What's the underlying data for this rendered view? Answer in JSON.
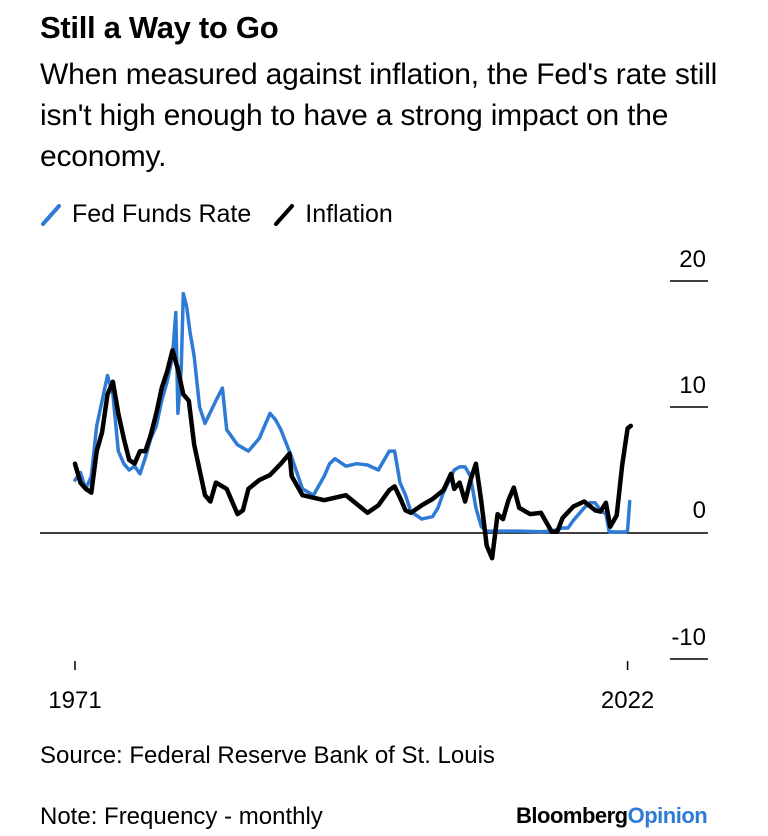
{
  "title": "Still a Way to Go",
  "subtitle": "When measured against inflation, the Fed's rate still isn't high enough to have a strong impact on the economy.",
  "legend": [
    {
      "label": "Fed Funds Rate",
      "color": "#2e7bd6"
    },
    {
      "label": "Inflation",
      "color": "#000000"
    }
  ],
  "source": "Source: Federal Reserve Bank of St. Louis",
  "note": "Note: Frequency - monthly",
  "brand": {
    "part1": "Bloomberg",
    "part2": "Opinion",
    "accent_color": "#2e7bd6"
  },
  "chart_data": {
    "type": "line",
    "title": "Still a Way to Go",
    "xlabel": "",
    "ylabel": "",
    "xlim": [
      1971,
      2022.5
    ],
    "ylim": [
      -10,
      20
    ],
    "yticks": [
      20,
      10,
      0,
      -10
    ],
    "yticklabels": [
      "20",
      "10",
      "0",
      "-10"
    ],
    "xticks": [
      1971,
      2022
    ],
    "xticklabels": [
      "1971",
      "2022"
    ],
    "zero_line": true,
    "legend_position": "top-left",
    "series": [
      {
        "name": "Fed Funds Rate",
        "color": "#2e7bd6",
        "x": [
          1971,
          1971.5,
          1972,
          1972.5,
          1973,
          1973.5,
          1974,
          1974.5,
          1975,
          1975.5,
          1976,
          1976.5,
          1977,
          1977.5,
          1978,
          1978.5,
          1979,
          1979.5,
          1980,
          1980.3,
          1980.5,
          1980.8,
          1981,
          1981.3,
          1981.6,
          1982,
          1982.5,
          1983,
          1984,
          1984.6,
          1985,
          1986,
          1987,
          1988,
          1989,
          1989.5,
          1990,
          1991,
          1992,
          1993,
          1994,
          1994.5,
          1995,
          1996,
          1997,
          1998,
          1999,
          2000,
          2000.5,
          2001,
          2001.5,
          2002,
          2003,
          2004,
          2004.5,
          2005,
          2006,
          2006.5,
          2007,
          2007.5,
          2008,
          2008.5,
          2009,
          2010,
          2012,
          2014,
          2015,
          2016,
          2016.5,
          2017,
          2018,
          2018.5,
          2019,
          2019.5,
          2020,
          2020.3,
          2021,
          2021.8,
          2022,
          2022.2
        ],
        "y": [
          4.2,
          4.8,
          3.5,
          4.5,
          8.5,
          10.5,
          12.5,
          11,
          6.5,
          5.5,
          5,
          5.3,
          4.7,
          6,
          7.5,
          8.5,
          10.5,
          12,
          14,
          17.5,
          9.5,
          13,
          19,
          18,
          16,
          14,
          10,
          8.7,
          10.5,
          11.5,
          8.2,
          7,
          6.5,
          7.5,
          9.5,
          9,
          8.2,
          6,
          3.5,
          3,
          4.5,
          5.5,
          5.9,
          5.3,
          5.5,
          5.4,
          5,
          6.5,
          6.5,
          4,
          3,
          1.7,
          1.1,
          1.3,
          2,
          3.2,
          5,
          5.25,
          5.25,
          4.5,
          2,
          0.5,
          0.15,
          0.15,
          0.15,
          0.1,
          0.15,
          0.4,
          0.4,
          1,
          2,
          2.4,
          2.4,
          1.8,
          1.5,
          0.1,
          0.08,
          0.08,
          0.2,
          2.5
        ]
      },
      {
        "name": "Inflation",
        "color": "#000000",
        "x": [
          1971,
          1971.5,
          1972,
          1972.5,
          1973,
          1973.5,
          1974,
          1974.5,
          1975,
          1975.5,
          1976,
          1976.5,
          1977,
          1977.5,
          1978,
          1978.5,
          1979,
          1979.5,
          1980,
          1980.5,
          1981,
          1981.5,
          1982,
          1982.5,
          1983,
          1983.5,
          1984,
          1985,
          1986,
          1986.5,
          1987,
          1988,
          1989,
          1990,
          1990.8,
          1991,
          1992,
          1993,
          1994,
          1995,
          1996,
          1997,
          1998,
          1999,
          2000,
          2000.5,
          2001,
          2001.5,
          2002,
          2003,
          2004,
          2005,
          2005.7,
          2006,
          2006.5,
          2007,
          2007.5,
          2008,
          2008.5,
          2009,
          2009.5,
          2010,
          2010.5,
          2011,
          2011.5,
          2012,
          2013,
          2014,
          2015,
          2015.5,
          2016,
          2017,
          2018,
          2019,
          2019.5,
          2020,
          2020.4,
          2021,
          2021.5,
          2022,
          2022.3
        ],
        "y": [
          5.5,
          4,
          3.5,
          3.2,
          6.5,
          8,
          11,
          12,
          9.5,
          7.5,
          5.8,
          5.5,
          6.5,
          6.5,
          7.8,
          9.5,
          11.5,
          12.8,
          14.5,
          13,
          11,
          10.5,
          7,
          5,
          3,
          2.5,
          4,
          3.5,
          1.5,
          1.8,
          3.5,
          4.2,
          4.6,
          5.5,
          6.3,
          4.5,
          3,
          2.8,
          2.6,
          2.8,
          3,
          2.3,
          1.6,
          2.2,
          3.4,
          3.7,
          2.8,
          1.8,
          1.6,
          2.2,
          2.7,
          3.4,
          4.7,
          3.5,
          4,
          2.5,
          4.2,
          5.5,
          2.5,
          -1,
          -2,
          1.5,
          1.1,
          2.6,
          3.6,
          2,
          1.5,
          1.6,
          0.1,
          0.1,
          1.2,
          2.1,
          2.5,
          1.8,
          1.7,
          2.4,
          0.5,
          1.4,
          5.4,
          8.3,
          8.5
        ]
      }
    ]
  }
}
